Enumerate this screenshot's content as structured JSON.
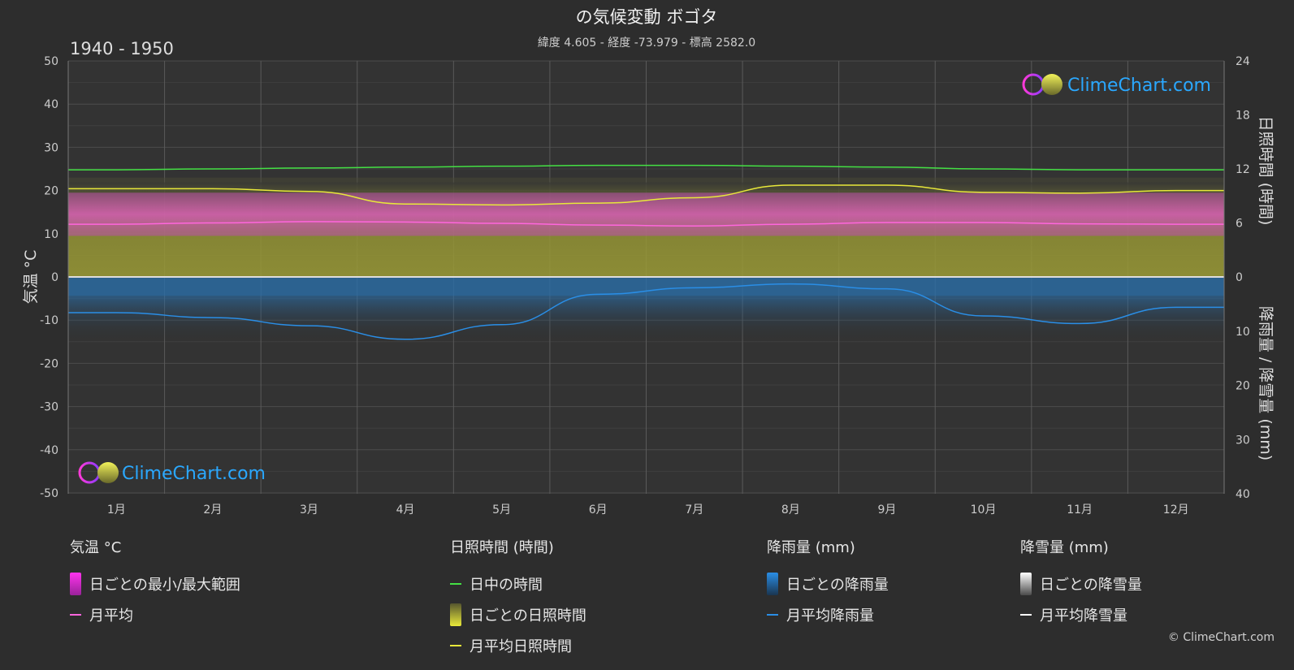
{
  "title": "の気候変動 ボゴタ",
  "subtitle": "緯度 4.605 - 経度 -73.979 - 標高 2582.0",
  "period": "1940 - 1950",
  "brand": "ClimeChart.com",
  "copyright": "© ClimeChart.com",
  "colors": {
    "background": "#2d2d2d",
    "daylight": "#44e044",
    "sunshine_line": "#e8e83a",
    "temp_line": "#ff66dd",
    "rain_line": "#2a8ee6",
    "temp_band": "#e055c8",
    "sunshine_band": "#a8a832",
    "rain_band": "#2a6ea8",
    "brand_text": "#2aa8ff"
  },
  "chart_data": {
    "type": "line",
    "categories": [
      "1月",
      "2月",
      "3月",
      "4月",
      "5月",
      "6月",
      "7月",
      "8月",
      "9月",
      "10月",
      "11月",
      "12月"
    ],
    "axes": {
      "left": {
        "label": "気温 °C",
        "ylim": [
          -50,
          50
        ],
        "ticks": [
          "50",
          "40",
          "30",
          "20",
          "10",
          "0",
          "-10",
          "-20",
          "-30",
          "-40",
          "-50"
        ]
      },
      "right_top": {
        "label": "日照時間 (時間)",
        "ylim": [
          0,
          24
        ],
        "ticks": [
          "24",
          "18",
          "12",
          "6",
          "0"
        ]
      },
      "right_bottom": {
        "label": "降雨量 / 降雪量 (mm)",
        "ylim": [
          0,
          40
        ],
        "ticks": [
          "10",
          "20",
          "30",
          "40"
        ]
      }
    },
    "grid": true,
    "series": [
      {
        "name": "日中の時間",
        "axis": "sunshine",
        "values": [
          11.9,
          12.0,
          12.1,
          12.2,
          12.3,
          12.4,
          12.4,
          12.3,
          12.2,
          12.0,
          11.9,
          11.9
        ]
      },
      {
        "name": "月平均日照時間",
        "axis": "sunshine",
        "values": [
          9.8,
          9.8,
          9.5,
          8.1,
          8.0,
          8.2,
          8.8,
          10.2,
          10.2,
          9.4,
          9.3,
          9.6
        ]
      },
      {
        "name": "月平均",
        "axis": "temperature",
        "values": [
          12.2,
          12.5,
          12.8,
          12.7,
          12.4,
          12.0,
          11.8,
          12.2,
          12.6,
          12.6,
          12.3,
          12.2
        ]
      },
      {
        "name": "月平均降雨量",
        "axis": "precipitation",
        "values": [
          6.6,
          7.5,
          9.0,
          11.5,
          8.8,
          3.2,
          2.0,
          1.3,
          2.2,
          7.2,
          8.6,
          5.6
        ]
      }
    ],
    "bands": [
      {
        "name": "日ごとの最小/最大範囲",
        "axis": "temperature",
        "low": 9.5,
        "high": 19.5
      },
      {
        "name": "日ごとの日照時間",
        "axis": "sunshine",
        "low": 0,
        "high": 10.5
      },
      {
        "name": "日ごとの降雨量",
        "axis": "precipitation",
        "low": 0,
        "high": 3.5
      }
    ]
  },
  "legend": [
    {
      "title": "気温 °C",
      "items": [
        {
          "label": "日ごとの最小/最大範囲",
          "icon": "temp-range-swatch"
        },
        {
          "label": "月平均",
          "icon": "temp-mean-line"
        }
      ]
    },
    {
      "title": "日照時間 (時間)",
      "items": [
        {
          "label": "日中の時間",
          "icon": "daylight-line"
        },
        {
          "label": "日ごとの日照時間",
          "icon": "sunshine-swatch"
        },
        {
          "label": "月平均日照時間",
          "icon": "sunshine-mean-line"
        }
      ]
    },
    {
      "title": "降雨量 (mm)",
      "items": [
        {
          "label": "日ごとの降雨量",
          "icon": "rain-swatch"
        },
        {
          "label": "月平均降雨量",
          "icon": "rain-mean-line"
        }
      ]
    },
    {
      "title": "降雪量 (mm)",
      "items": [
        {
          "label": "日ごとの降雪量",
          "icon": "snow-swatch"
        },
        {
          "label": "月平均降雪量",
          "icon": "snow-mean-line"
        }
      ]
    }
  ]
}
